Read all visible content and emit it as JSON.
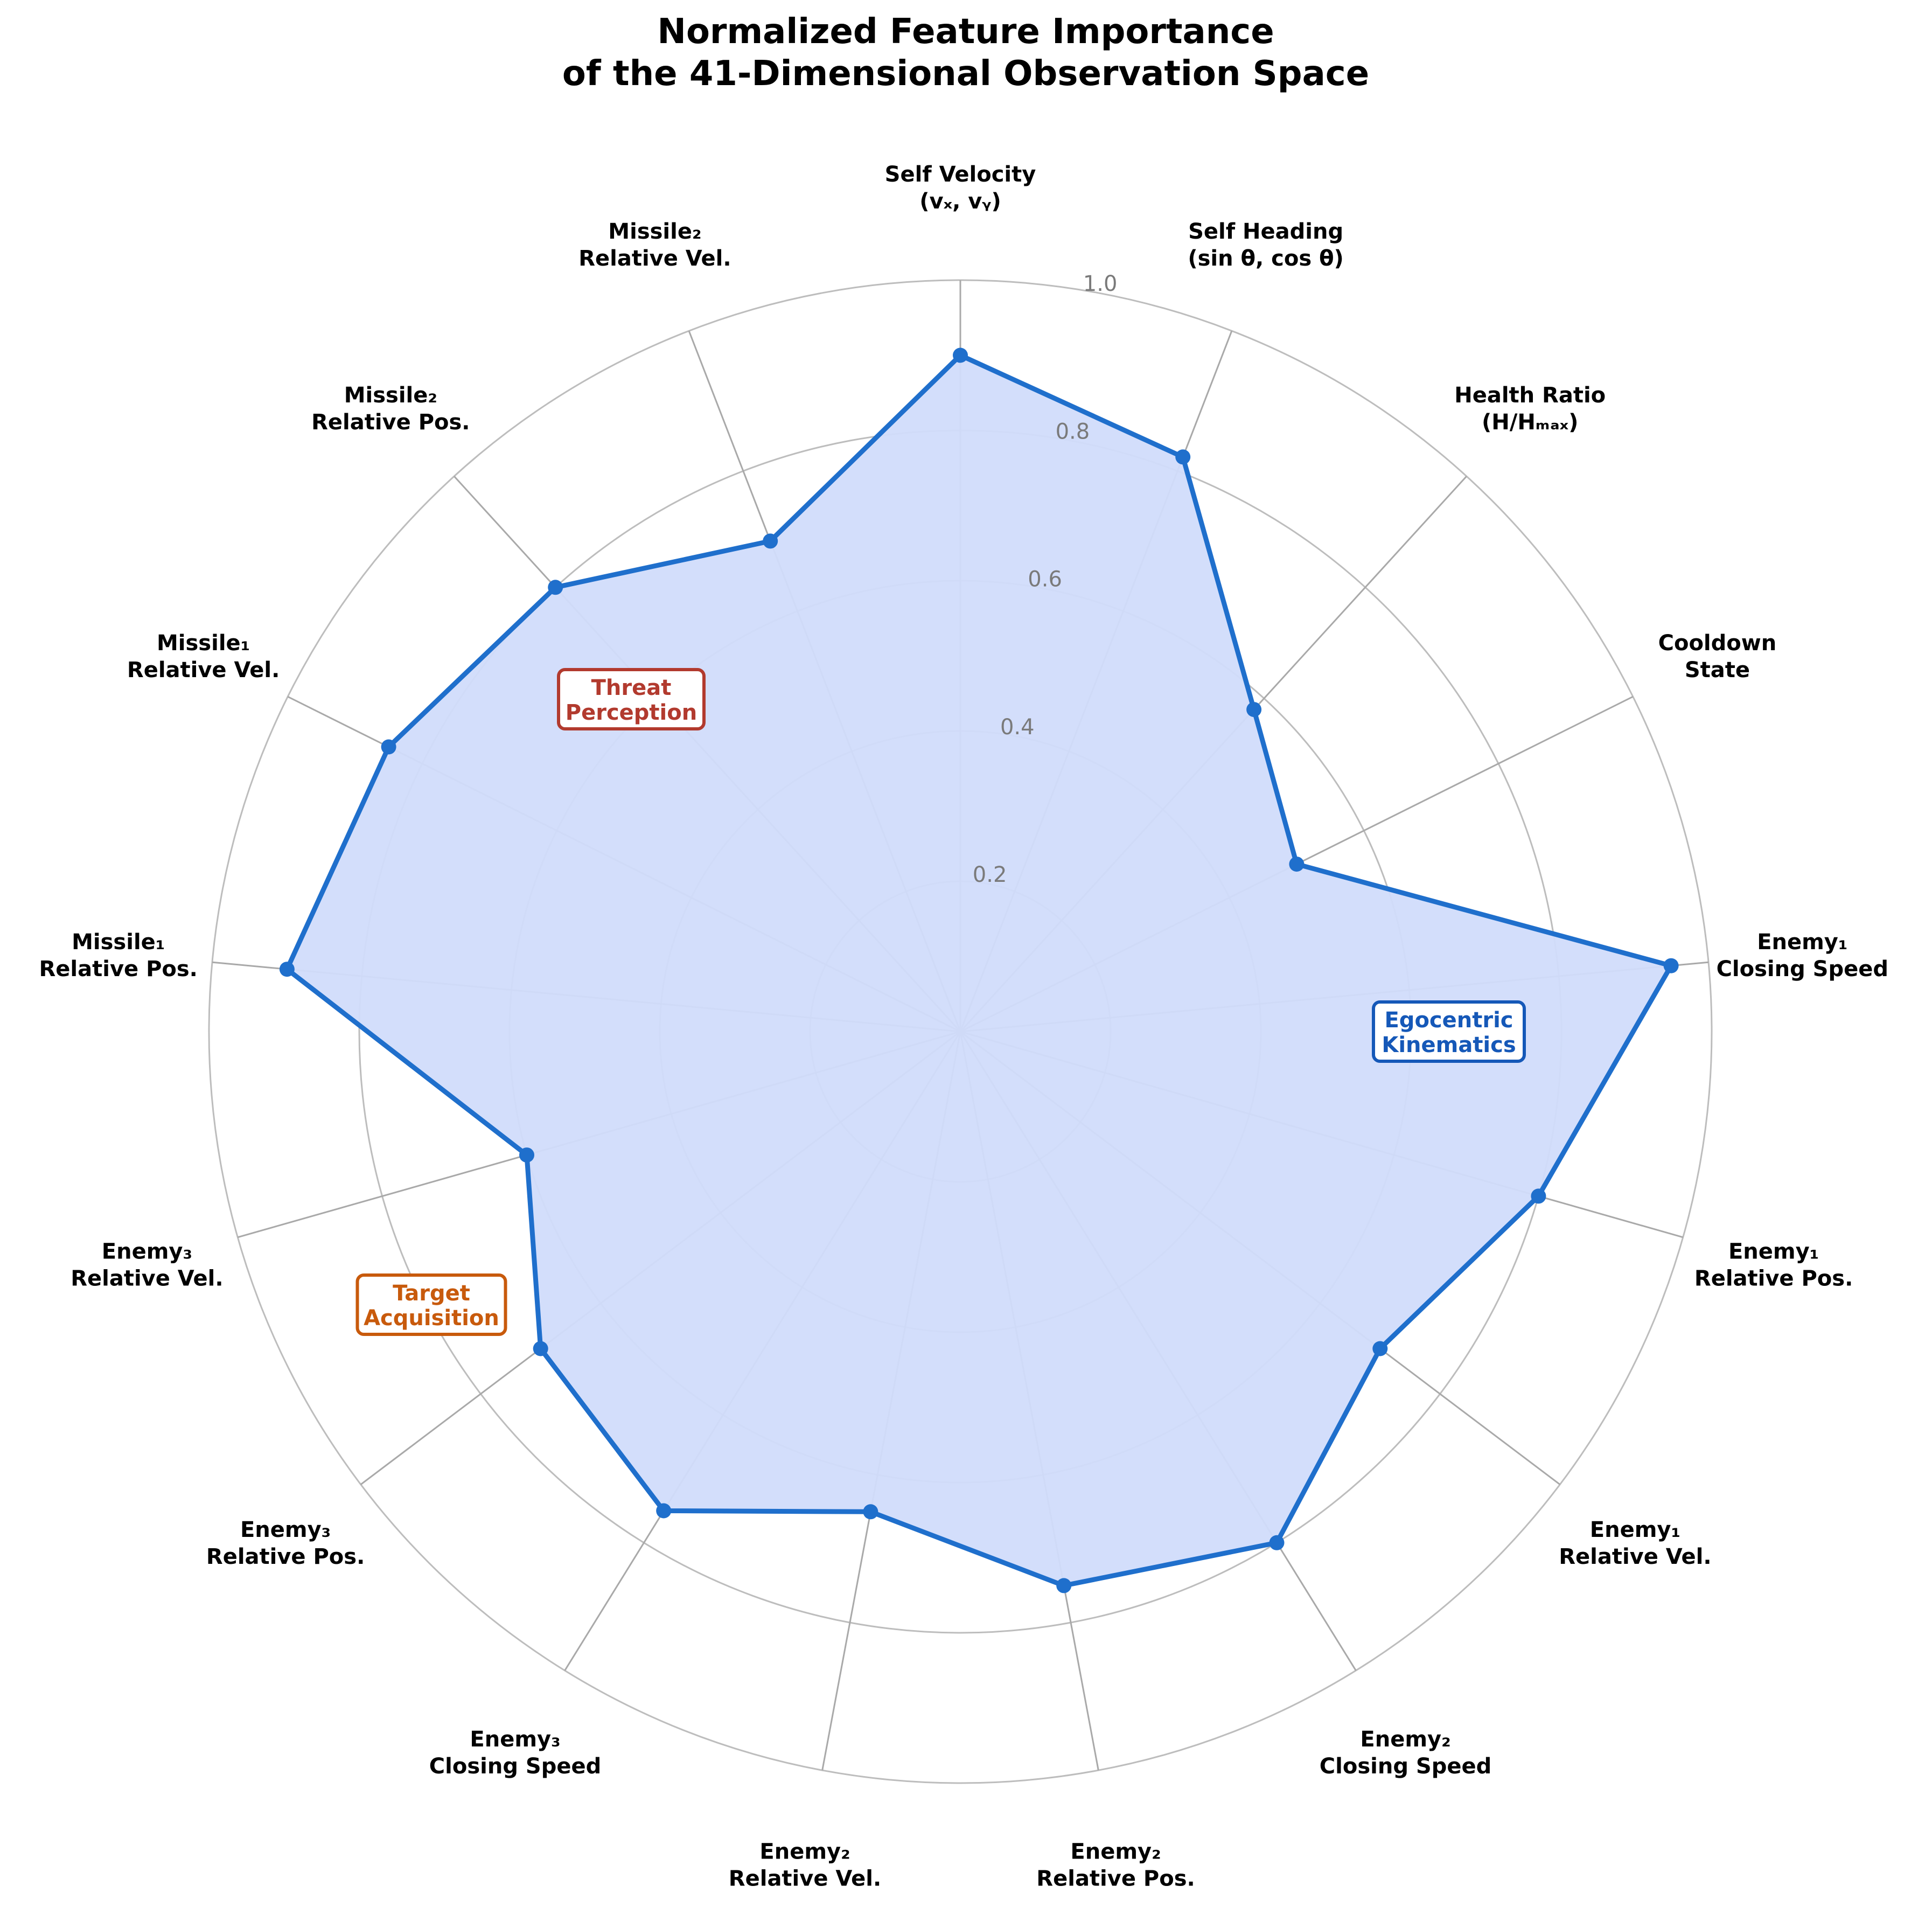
{
  "chart_data": {
    "type": "radar",
    "title": [
      "Normalized Feature Importance",
      "of the 41-Dimensional Observation Space"
    ],
    "rlim": [
      0,
      1.0
    ],
    "rticks": [
      "0.2",
      "0.4",
      "0.6",
      "0.8",
      "1.0"
    ],
    "rtick_values": [
      0.2,
      0.4,
      0.6,
      0.8,
      1.0
    ],
    "grid": true,
    "categories": [
      {
        "line1": "Self Velocity",
        "line2": "(vₓ, vᵧ)",
        "value": 0.9
      },
      {
        "line1": "Self Heading",
        "line2": "(sin θ, cos θ)",
        "value": 0.82
      },
      {
        "line1": "Health Ratio",
        "line2": "(H/Hₘₐₓ)",
        "value": 0.58
      },
      {
        "line1": "Cooldown",
        "line2": "State",
        "value": 0.5
      },
      {
        "line1": "Enemy₁",
        "line2": "Closing Speed",
        "value": 0.95
      },
      {
        "line1": "Enemy₁",
        "line2": "Relative Pos.",
        "value": 0.8
      },
      {
        "line1": "Enemy₁",
        "line2": "Relative Vel.",
        "value": 0.7
      },
      {
        "line1": "Enemy₂",
        "line2": "Closing Speed",
        "value": 0.8
      },
      {
        "line1": "Enemy₂",
        "line2": "Relative Pos.",
        "value": 0.75
      },
      {
        "line1": "Enemy₂",
        "line2": "Relative Vel.",
        "value": 0.65
      },
      {
        "line1": "Enemy₃",
        "line2": "Closing Speed",
        "value": 0.75
      },
      {
        "line1": "Enemy₃",
        "line2": "Relative Pos.",
        "value": 0.7
      },
      {
        "line1": "Enemy₃",
        "line2": "Relative Vel.",
        "value": 0.6
      },
      {
        "line1": "Missile₁",
        "line2": "Relative Pos.",
        "value": 0.9
      },
      {
        "line1": "Missile₁",
        "line2": "Relative Vel.",
        "value": 0.85
      },
      {
        "line1": "Missile₂",
        "line2": "Relative Pos.",
        "value": 0.8
      },
      {
        "line1": "Missile₂",
        "line2": "Relative Vel.",
        "value": 0.7
      }
    ],
    "series_color": "#1f6fcc",
    "fill_color": "#d1dcfb",
    "annotations": [
      {
        "text": [
          "Threat",
          "Perception"
        ],
        "color": "#b23a2e"
      },
      {
        "text": [
          "Egocentric",
          "Kinematics"
        ],
        "color": "#1558b8"
      },
      {
        "text": [
          "Target",
          "Acquisition"
        ],
        "color": "#c85a0c"
      }
    ]
  }
}
